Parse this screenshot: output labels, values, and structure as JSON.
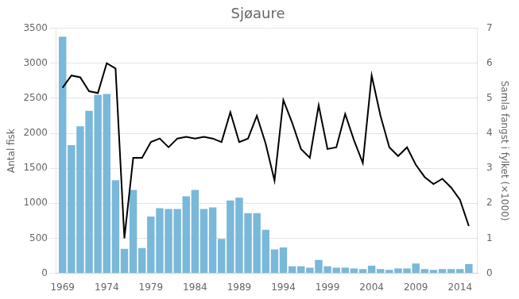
{
  "chart_data": {
    "type": "bar",
    "title": "Sjøaure",
    "ylabel": "Antal fisk",
    "y2label": "Samla fangst i fylket (×1000)",
    "x": [
      1969,
      1970,
      1971,
      1972,
      1973,
      1974,
      1975,
      1976,
      1977,
      1978,
      1979,
      1980,
      1981,
      1982,
      1983,
      1984,
      1985,
      1986,
      1987,
      1988,
      1989,
      1990,
      1991,
      1992,
      1993,
      1994,
      1995,
      1996,
      1997,
      1998,
      1999,
      2000,
      2001,
      2002,
      2003,
      2004,
      2005,
      2006,
      2007,
      2008,
      2009,
      2010,
      2011,
      2012,
      2013,
      2014,
      2015
    ],
    "xlim": [
      1968.3,
      2016.0
    ],
    "xticks": [
      1969,
      1974,
      1979,
      1984,
      1989,
      1994,
      1999,
      2004,
      2009,
      2014
    ],
    "ylim": [
      0,
      3500
    ],
    "yticks": [
      0,
      500,
      1000,
      1500,
      2000,
      2500,
      3000,
      3500
    ],
    "y2lim": [
      0,
      7
    ],
    "y2ticks": [
      0,
      1,
      2,
      3,
      4,
      5,
      6,
      7
    ],
    "grid": true,
    "series": [
      {
        "type": "bar",
        "color": "#7ab8d9",
        "values": [
          3380,
          1830,
          2100,
          2320,
          2550,
          2560,
          1330,
          350,
          1190,
          360,
          810,
          930,
          920,
          920,
          1100,
          1190,
          920,
          940,
          490,
          1040,
          1080,
          860,
          860,
          620,
          340,
          370,
          100,
          100,
          80,
          190,
          100,
          80,
          80,
          70,
          60,
          110,
          60,
          50,
          70,
          70,
          140,
          60,
          50,
          60,
          60,
          60,
          130
        ]
      },
      {
        "type": "line",
        "color": "#000000",
        "axis": "y2",
        "values": [
          5.3,
          5.65,
          5.6,
          5.2,
          5.15,
          6.0,
          5.85,
          1.0,
          3.3,
          3.3,
          3.75,
          3.85,
          3.6,
          3.85,
          3.9,
          3.85,
          3.9,
          3.85,
          3.75,
          4.6,
          3.75,
          3.85,
          4.5,
          3.7,
          2.65,
          4.95,
          4.3,
          3.55,
          3.3,
          4.8,
          3.55,
          3.6,
          4.55,
          3.8,
          3.15,
          5.65,
          4.5,
          3.6,
          3.35,
          3.6,
          3.1,
          2.75,
          2.55,
          2.7,
          2.45,
          2.1,
          1.35
        ]
      }
    ]
  }
}
